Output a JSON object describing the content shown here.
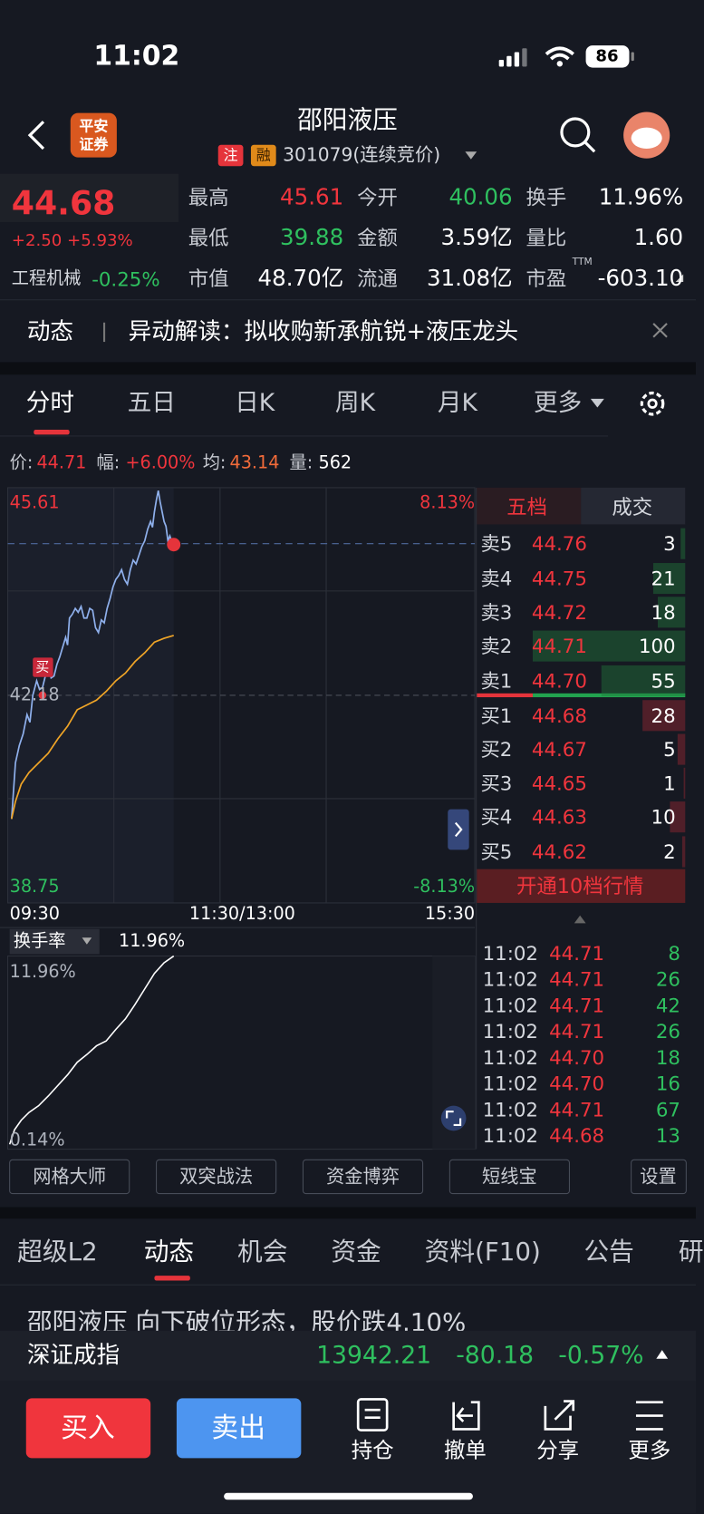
{
  "status_bar": {
    "time": "11:02",
    "battery": "86"
  },
  "header": {
    "logo": [
      "平安",
      "证券"
    ],
    "title": "邵阳液压",
    "tags": [
      "注",
      "融"
    ],
    "code": "301079(连续竞价)"
  },
  "quote": {
    "price": "44.68",
    "change": "+2.50 +5.93%",
    "sector": "工程机械",
    "sector_change": "-0.25%",
    "stats": [
      {
        "label": "最高",
        "value": "45.61"
      },
      {
        "label": "今开",
        "value": "40.06"
      },
      {
        "label": "换手",
        "value": "11.96%"
      },
      {
        "label": "最低",
        "value": "39.88"
      },
      {
        "label": "金额",
        "value": "3.59亿"
      },
      {
        "label": "量比",
        "value": "1.60"
      },
      {
        "label": "市值",
        "value": "48.70亿"
      },
      {
        "label": "流通",
        "value": "31.08亿"
      },
      {
        "label": "市盈",
        "value": "-603.10"
      }
    ],
    "pe_note": "TTM"
  },
  "news_banner": {
    "tag": "动态",
    "text": "异动解读：拟收购新承航锐+液压龙头"
  },
  "chart_tabs": [
    "分时",
    "五日",
    "日K",
    "周K",
    "月K",
    "更多"
  ],
  "crosshair_info": [
    {
      "label": "价:",
      "value": "44.71"
    },
    {
      "label": "幅:",
      "value": "+6.00%"
    },
    {
      "label": "均:",
      "value": "43.14"
    },
    {
      "label": "量:",
      "value": "562"
    }
  ],
  "intraday_chart": {
    "high": "45.61",
    "high_pct": "8.13%",
    "mid": "42.18",
    "low": "38.75",
    "low_pct": "-8.13%",
    "times": [
      "09:30",
      "11:30/13:00",
      "15:30"
    ],
    "marker": "买"
  },
  "turnover": {
    "label": "换手率",
    "value": "11.96%",
    "max": "11.96%",
    "min": "0.14%"
  },
  "order_book": {
    "tabs": [
      "五档",
      "成交"
    ],
    "asks": [
      {
        "label": "卖5",
        "price": "44.76",
        "volume": 3
      },
      {
        "label": "卖4",
        "price": "44.75",
        "volume": 21
      },
      {
        "label": "卖3",
        "price": "44.72",
        "volume": 18
      },
      {
        "label": "卖2",
        "price": "44.71",
        "volume": 100
      },
      {
        "label": "卖1",
        "price": "44.70",
        "volume": 55
      }
    ],
    "bids": [
      {
        "label": "买1",
        "price": "44.68",
        "volume": 28
      },
      {
        "label": "买2",
        "price": "44.67",
        "volume": 5
      },
      {
        "label": "买3",
        "price": "44.65",
        "volume": 1
      },
      {
        "label": "买4",
        "price": "44.63",
        "volume": 10
      },
      {
        "label": "买5",
        "price": "44.62",
        "volume": 2
      }
    ],
    "upgrade": "开通10档行情"
  },
  "trades": [
    {
      "time": "11:02",
      "price": "44.71",
      "volume": 8
    },
    {
      "time": "11:02",
      "price": "44.71",
      "volume": 26
    },
    {
      "time": "11:02",
      "price": "44.71",
      "volume": 42
    },
    {
      "time": "11:02",
      "price": "44.71",
      "volume": 26
    },
    {
      "time": "11:02",
      "price": "44.70",
      "volume": 18
    },
    {
      "time": "11:02",
      "price": "44.70",
      "volume": 16
    },
    {
      "time": "11:02",
      "price": "44.71",
      "volume": 67
    },
    {
      "time": "11:02",
      "price": "44.68",
      "volume": 13
    }
  ],
  "tools": [
    "网格大师",
    "双突战法",
    "资金博弈",
    "短线宝",
    "设置"
  ],
  "bottom_tabs": [
    "超级L2",
    "动态",
    "机会",
    "资金",
    "资料(F10)",
    "公告",
    "研"
  ],
  "news_item": "邵阳液压 向下破位形态，股价跌4.10%",
  "index_bar": {
    "name": "深证成指",
    "value": "13942.21",
    "change": "-80.18",
    "percent": "-0.57%"
  },
  "actions": {
    "buy": "买入",
    "sell": "卖出",
    "items": [
      "持仓",
      "撤单",
      "分享",
      "更多"
    ]
  }
}
